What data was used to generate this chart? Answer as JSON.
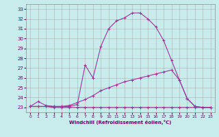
{
  "background_color": "#c8ecec",
  "grid_color": "#aaaaaa",
  "line_color": "#993399",
  "xlabel": "Windchill (Refroidissement éolien,°C)",
  "xlabel_color": "#660066",
  "tick_color": "#660066",
  "ylim": [
    22.5,
    33.5
  ],
  "xlim": [
    -0.5,
    23.5
  ],
  "yticks": [
    23,
    24,
    25,
    26,
    27,
    28,
    29,
    30,
    31,
    32,
    33
  ],
  "xticks": [
    0,
    1,
    2,
    3,
    4,
    5,
    6,
    7,
    8,
    9,
    10,
    11,
    12,
    13,
    14,
    15,
    16,
    17,
    18,
    19,
    20,
    21,
    22,
    23
  ],
  "line1_x": [
    0,
    1,
    2,
    3,
    4,
    5,
    6,
    7,
    8,
    9,
    10,
    11,
    12,
    13,
    14,
    15,
    16,
    17,
    18,
    19,
    20,
    21,
    22,
    23
  ],
  "line1_y": [
    23.1,
    23.6,
    23.2,
    23.1,
    23.1,
    23.1,
    23.3,
    27.3,
    26.0,
    29.2,
    31.0,
    31.8,
    32.1,
    32.6,
    32.6,
    32.0,
    31.2,
    29.8,
    27.8,
    25.8,
    23.9,
    23.1,
    23.0,
    23.0
  ],
  "line2_x": [
    0,
    1,
    2,
    3,
    4,
    5,
    6,
    7,
    8,
    9,
    10,
    11,
    12,
    13,
    14,
    15,
    16,
    17,
    18,
    19,
    20,
    21,
    22,
    23
  ],
  "line2_y": [
    23.1,
    23.1,
    23.1,
    23.1,
    23.1,
    23.2,
    23.5,
    23.8,
    24.2,
    24.7,
    25.0,
    25.3,
    25.6,
    25.8,
    26.0,
    26.2,
    26.4,
    26.6,
    26.8,
    25.8,
    23.9,
    23.1,
    23.0,
    23.0
  ],
  "line3_x": [
    0,
    1,
    2,
    3,
    4,
    5,
    6,
    7,
    8,
    9,
    10,
    11,
    12,
    13,
    14,
    15,
    16,
    17,
    18,
    19,
    20,
    21,
    22,
    23
  ],
  "line3_y": [
    23.1,
    23.1,
    23.1,
    23.0,
    23.0,
    23.0,
    23.0,
    23.0,
    23.0,
    23.0,
    23.0,
    23.0,
    23.0,
    23.0,
    23.0,
    23.0,
    23.0,
    23.0,
    23.0,
    23.0,
    23.0,
    23.0,
    23.0,
    23.0
  ]
}
